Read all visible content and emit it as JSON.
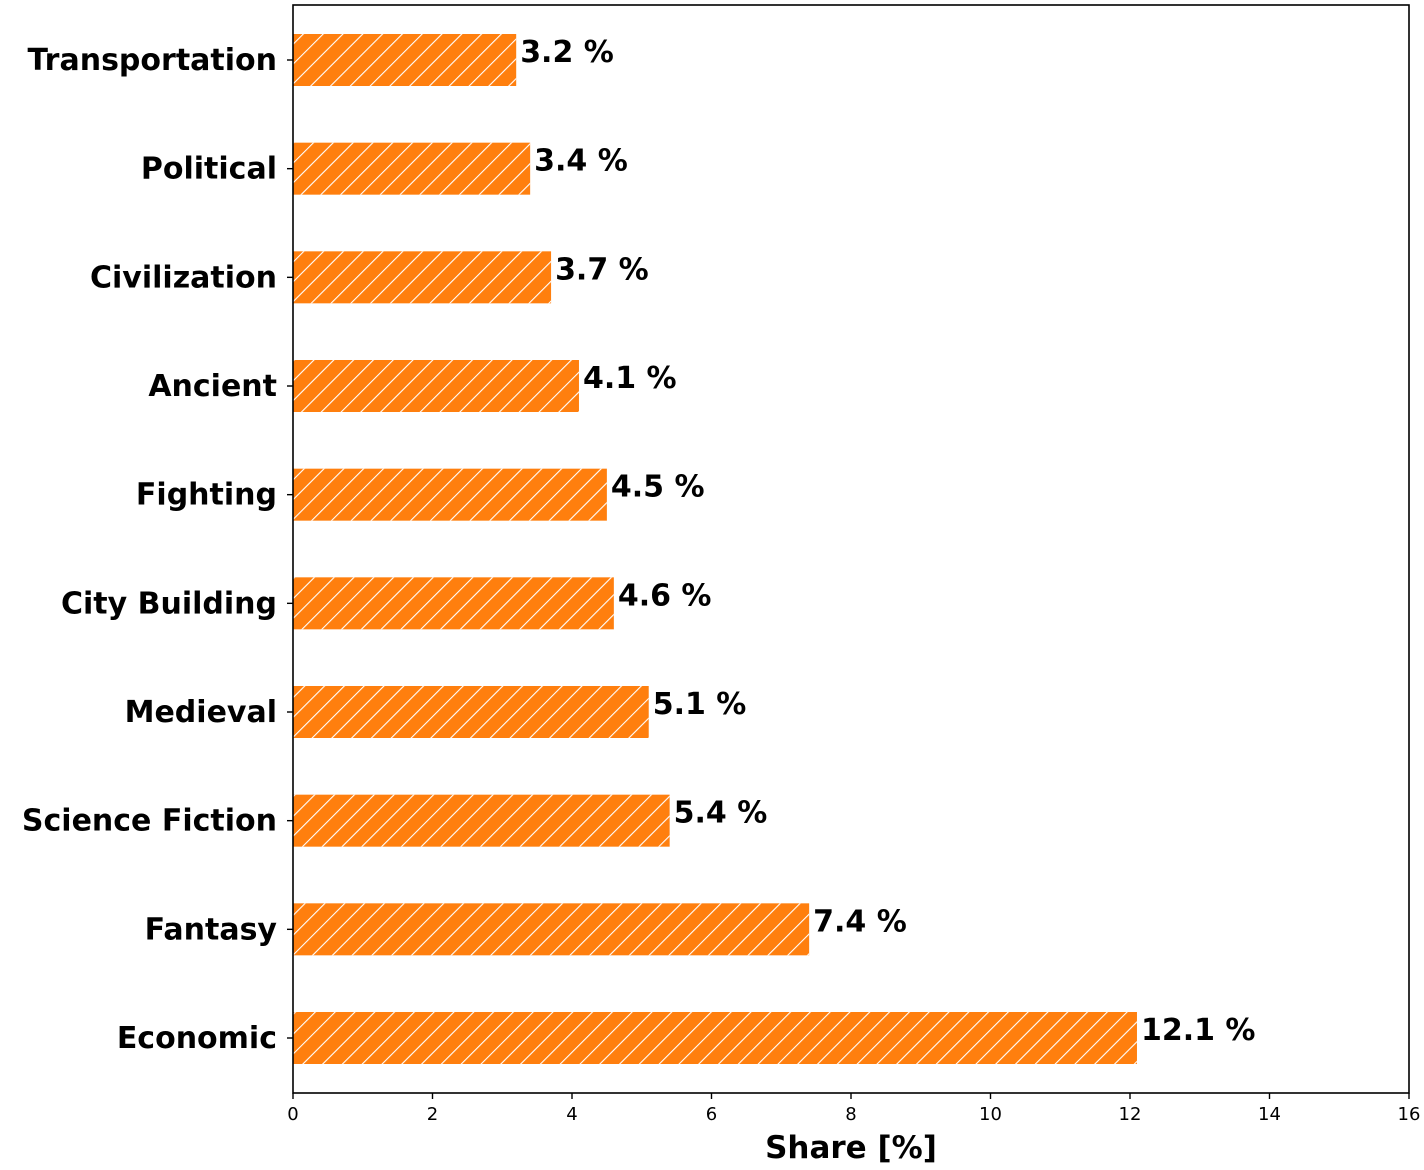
{
  "chart_data": {
    "type": "bar",
    "orientation": "horizontal",
    "categories": [
      "Economic",
      "Fantasy",
      "Science Fiction",
      "Medieval",
      "City Building",
      "Fighting",
      "Ancient",
      "Civilization",
      "Political",
      "Transportation"
    ],
    "values": [
      12.1,
      7.4,
      5.4,
      5.1,
      4.6,
      4.5,
      4.1,
      3.7,
      3.4,
      3.2
    ],
    "value_labels": [
      "12.1 %",
      "7.4 %",
      "5.4 %",
      "5.1 %",
      "4.6 %",
      "4.5 %",
      "4.1 %",
      "3.7 %",
      "3.4 %",
      "3.2 %"
    ],
    "xlabel": "Share [%]",
    "ylabel": "",
    "xlim": [
      0,
      16
    ],
    "xticks": [
      0,
      2,
      4,
      6,
      8,
      10,
      12,
      14,
      16
    ],
    "grid": false,
    "bar_color": "#ff7f0e",
    "hatch": "diagonal white lines"
  }
}
